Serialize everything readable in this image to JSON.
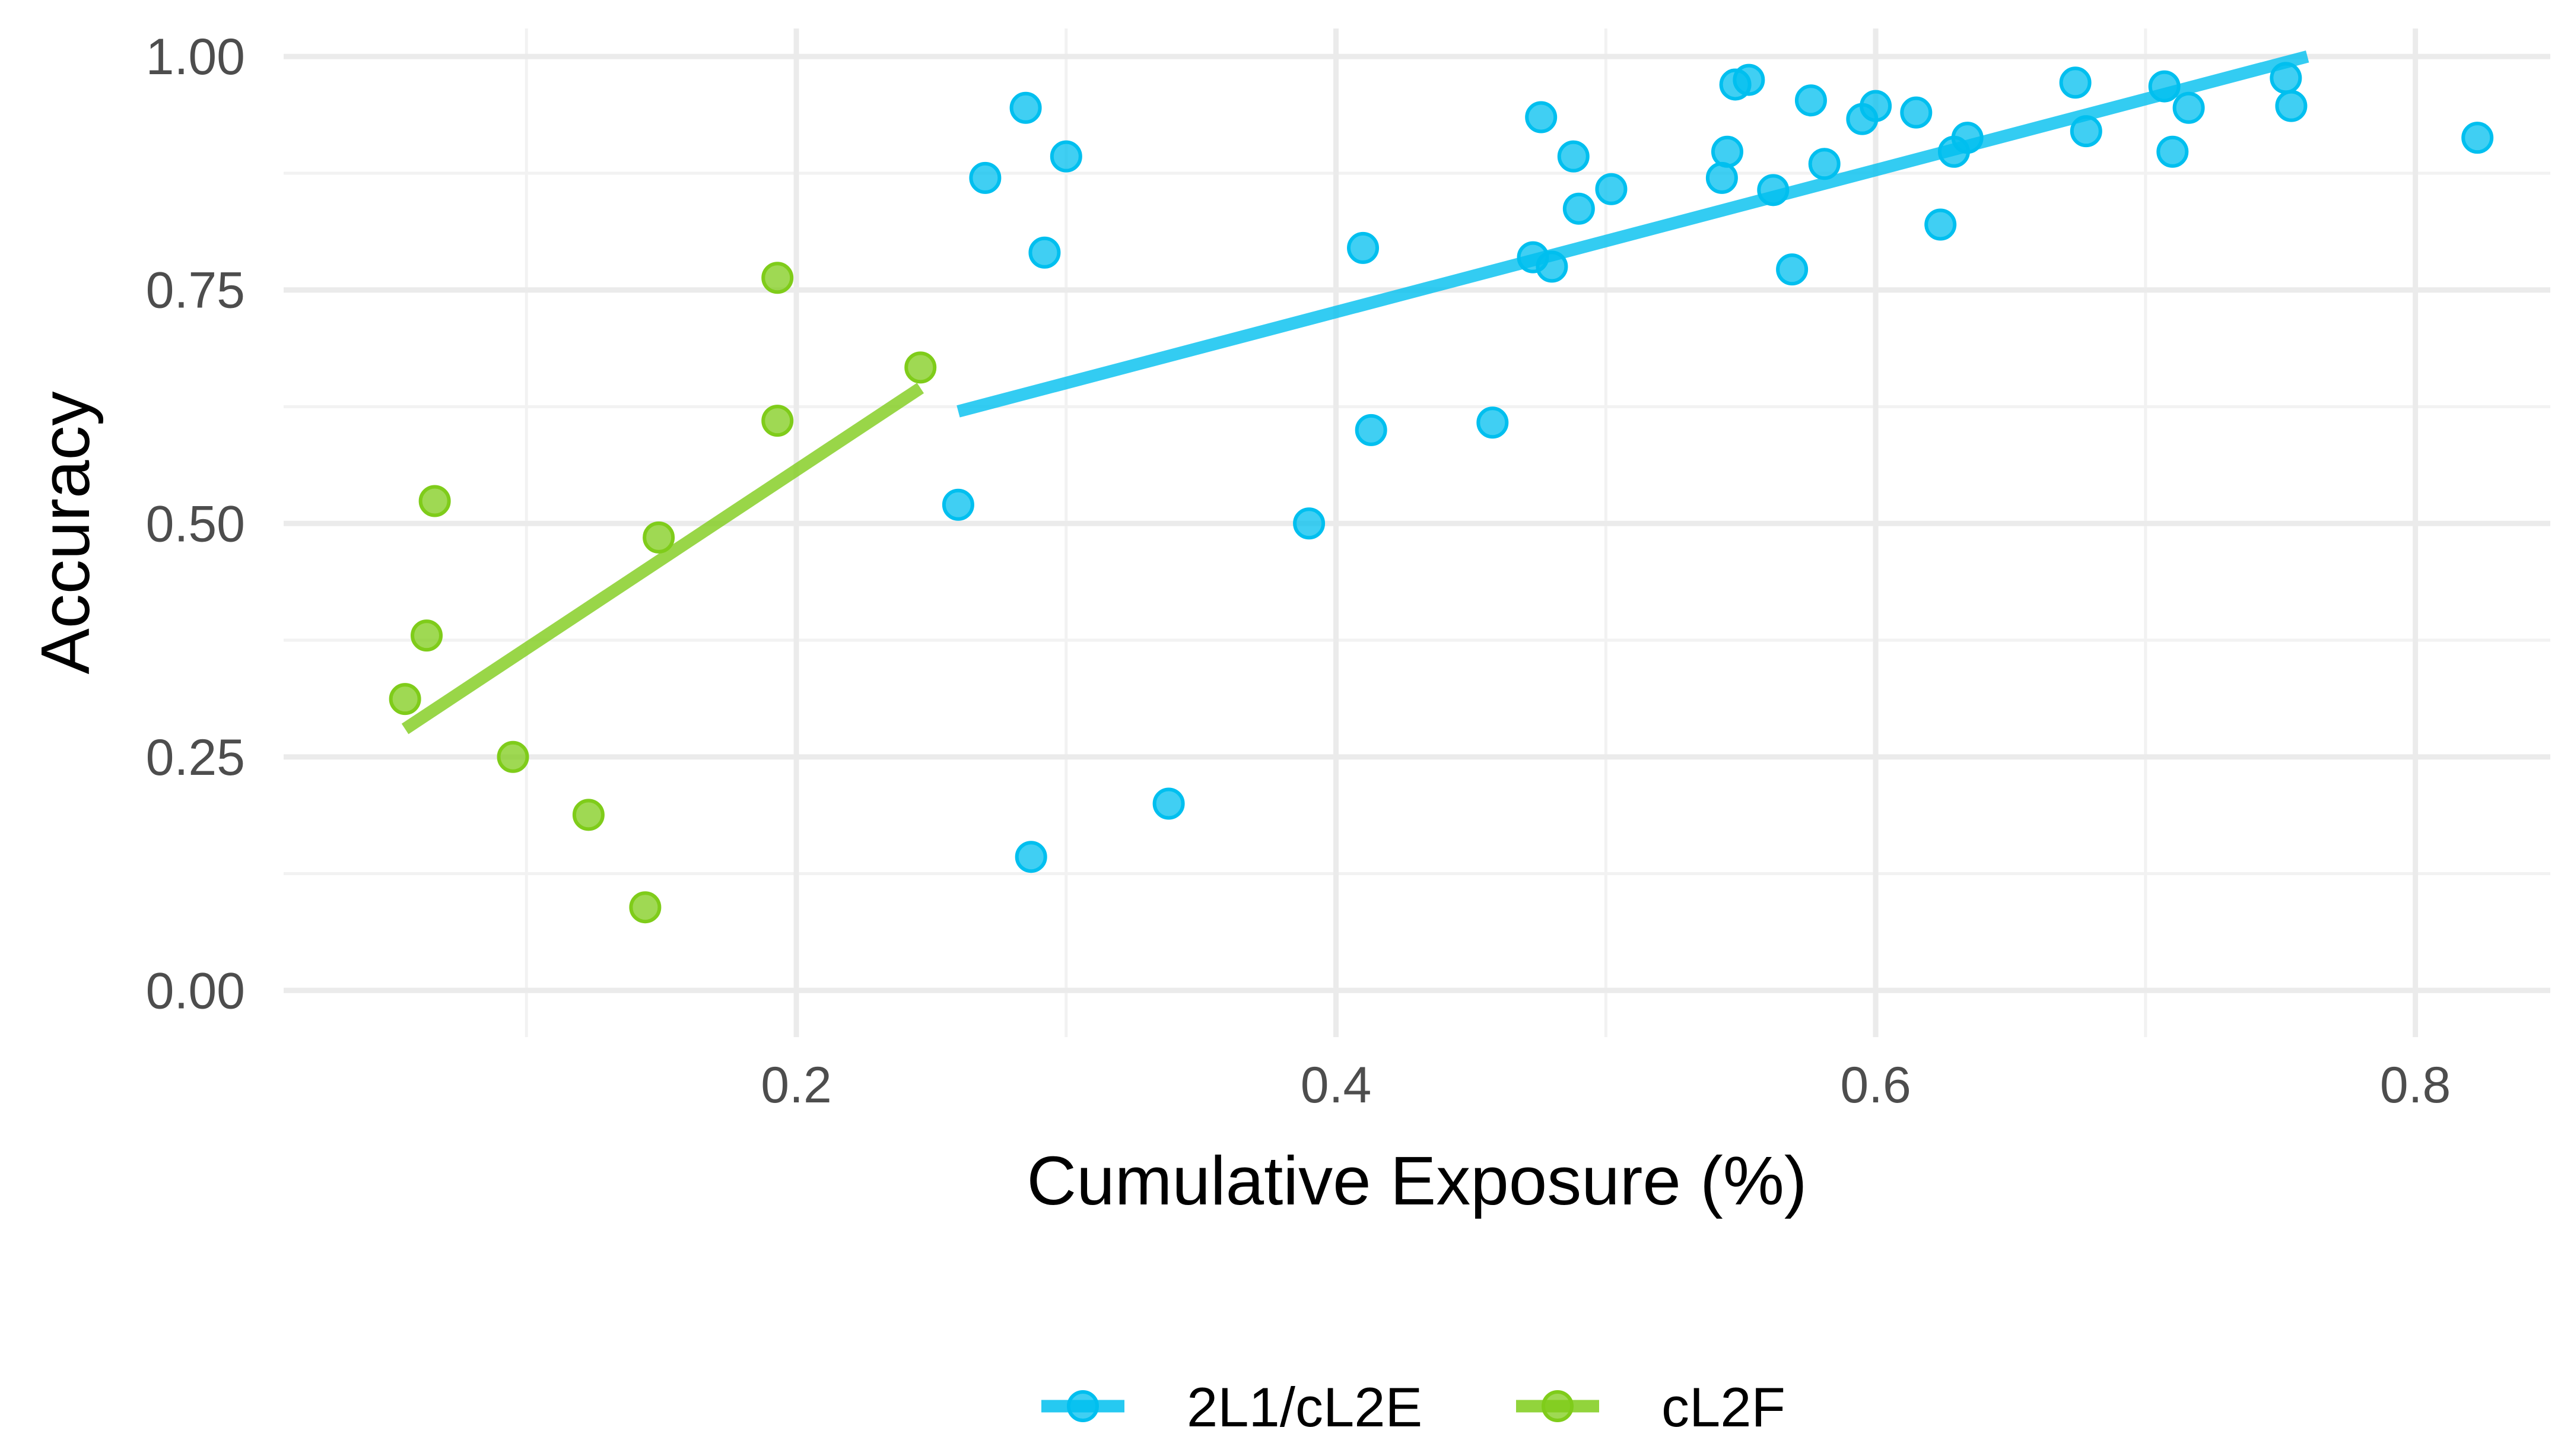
{
  "chart_data": {
    "type": "scatter",
    "title": "",
    "xlabel": "Cumulative Exposure (%)",
    "ylabel": "Accuracy",
    "xlim": [
      0.01,
      0.85
    ],
    "ylim": [
      -0.05,
      1.03
    ],
    "x_ticks": [
      0.2,
      0.4,
      0.6,
      0.8
    ],
    "x_tick_labels": [
      "0.2",
      "0.4",
      "0.6",
      "0.8"
    ],
    "x_minor": [
      0.1,
      0.3,
      0.5,
      0.7
    ],
    "y_ticks": [
      0.0,
      0.25,
      0.5,
      0.75,
      1.0
    ],
    "y_tick_labels": [
      "0.00",
      "0.25",
      "0.50",
      "0.75",
      "1.00"
    ],
    "y_minor": [
      0.125,
      0.375,
      0.625,
      0.875
    ],
    "grid": true,
    "legend_position": "bottom",
    "series": [
      {
        "name": "2L1/cL2E",
        "color": "#00BFEF",
        "points": [
          [
            0.26,
            0.52
          ],
          [
            0.27,
            0.87
          ],
          [
            0.285,
            0.945
          ],
          [
            0.287,
            0.143
          ],
          [
            0.292,
            0.79
          ],
          [
            0.3,
            0.893
          ],
          [
            0.338,
            0.2
          ],
          [
            0.39,
            0.5
          ],
          [
            0.41,
            0.795
          ],
          [
            0.413,
            0.6
          ],
          [
            0.458,
            0.608
          ],
          [
            0.473,
            0.785
          ],
          [
            0.476,
            0.935
          ],
          [
            0.48,
            0.775
          ],
          [
            0.488,
            0.893
          ],
          [
            0.49,
            0.837
          ],
          [
            0.502,
            0.858
          ],
          [
            0.543,
            0.87
          ],
          [
            0.545,
            0.898
          ],
          [
            0.548,
            0.97
          ],
          [
            0.553,
            0.975
          ],
          [
            0.562,
            0.857
          ],
          [
            0.569,
            0.772
          ],
          [
            0.576,
            0.953
          ],
          [
            0.581,
            0.885
          ],
          [
            0.595,
            0.933
          ],
          [
            0.6,
            0.947
          ],
          [
            0.615,
            0.94
          ],
          [
            0.624,
            0.82
          ],
          [
            0.629,
            0.898
          ],
          [
            0.634,
            0.913
          ],
          [
            0.674,
            0.972
          ],
          [
            0.678,
            0.92
          ],
          [
            0.707,
            0.968
          ],
          [
            0.71,
            0.898
          ],
          [
            0.716,
            0.945
          ],
          [
            0.752,
            0.977
          ],
          [
            0.754,
            0.947
          ],
          [
            0.823,
            0.913
          ]
        ],
        "fit": {
          "x": [
            0.26,
            0.76
          ],
          "y": [
            0.62,
            1.0
          ]
        }
      },
      {
        "name": "cL2F",
        "color": "#7FCC1A",
        "points": [
          [
            0.055,
            0.312
          ],
          [
            0.063,
            0.38
          ],
          [
            0.066,
            0.524
          ],
          [
            0.095,
            0.25
          ],
          [
            0.123,
            0.188
          ],
          [
            0.144,
            0.089
          ],
          [
            0.149,
            0.485
          ],
          [
            0.193,
            0.763
          ],
          [
            0.193,
            0.61
          ],
          [
            0.246,
            0.667
          ]
        ],
        "fit": {
          "x": [
            0.055,
            0.246
          ],
          "y": [
            0.28,
            0.645
          ]
        }
      }
    ]
  }
}
